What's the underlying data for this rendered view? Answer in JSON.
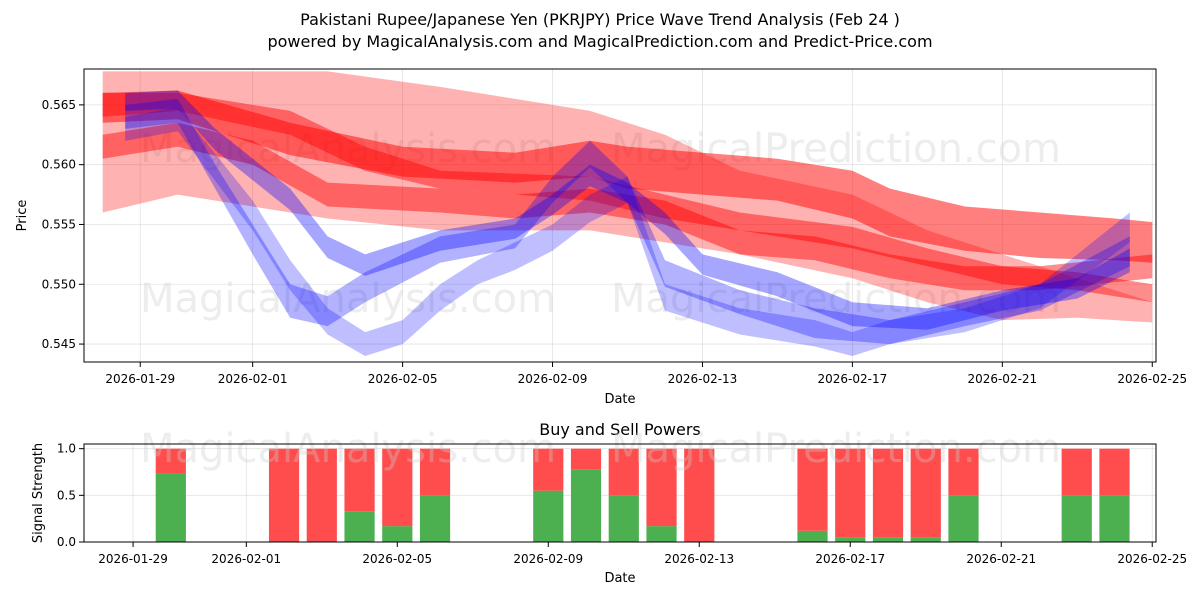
{
  "title_line1": "Pakistani Rupee/Japanese Yen (PKRJPY) Price Wave Trend Analysis (Feb 24 )",
  "title_line2": "powered by MagicalAnalysis.com and MagicalPrediction.com and Predict-Price.com",
  "watermarks": [
    "MagicalAnalysis.com",
    "MagicalPrediction.com"
  ],
  "colors": {
    "red": "#ff0000",
    "blue": "#0000ff",
    "buy": "#4caf50",
    "sell": "#ff4d4d"
  },
  "chart_data": [
    {
      "type": "line",
      "title": "",
      "xlabel": "Date",
      "ylabel": "Price",
      "xlim": [
        -1.5,
        27.1
      ],
      "ylim": [
        0.5435,
        0.568
      ],
      "x_ticks": [
        {
          "pos": 0,
          "label": "2026-01-29"
        },
        {
          "pos": 3,
          "label": "2026-02-01"
        },
        {
          "pos": 7,
          "label": "2026-02-05"
        },
        {
          "pos": 11,
          "label": "2026-02-09"
        },
        {
          "pos": 15,
          "label": "2026-02-13"
        },
        {
          "pos": 19,
          "label": "2026-02-17"
        },
        {
          "pos": 23,
          "label": "2026-02-21"
        },
        {
          "pos": 27,
          "label": "2026-02-25"
        }
      ],
      "y_ticks": [
        0.545,
        0.55,
        0.555,
        0.56,
        0.565
      ],
      "y_tick_labels": [
        "0.545",
        "0.550",
        "0.555",
        "0.560",
        "0.565"
      ],
      "red_bands": [
        {
          "x": [
            -1,
            1,
            3,
            5,
            8,
            12,
            14,
            16,
            19,
            21,
            23,
            25,
            27
          ],
          "upper": [
            0.5678,
            0.5678,
            0.5678,
            0.5678,
            0.5665,
            0.5645,
            0.5625,
            0.5595,
            0.5575,
            0.5545,
            0.5525,
            0.5505,
            0.5485
          ],
          "lower": [
            0.556,
            0.5575,
            0.5565,
            0.5555,
            0.5545,
            0.5545,
            0.5535,
            0.5525,
            0.5505,
            0.5485,
            0.547,
            0.5472,
            0.5468
          ],
          "opacity": 0.3
        },
        {
          "x": [
            -1,
            1,
            4,
            6,
            8,
            12,
            14,
            16,
            19,
            21,
            23,
            25,
            27
          ],
          "upper": [
            0.566,
            0.566,
            0.5645,
            0.5615,
            0.5595,
            0.559,
            0.5575,
            0.556,
            0.5548,
            0.553,
            0.5515,
            0.551,
            0.55
          ],
          "lower": [
            0.564,
            0.5645,
            0.5625,
            0.5595,
            0.558,
            0.557,
            0.5555,
            0.5545,
            0.553,
            0.5515,
            0.55,
            0.5495,
            0.5485
          ],
          "opacity": 0.45
        },
        {
          "x": [
            -1,
            1,
            3,
            5,
            8,
            10,
            12,
            14,
            16,
            18,
            20,
            22,
            24,
            27
          ],
          "upper": [
            0.5625,
            0.5635,
            0.562,
            0.5585,
            0.558,
            0.5575,
            0.558,
            0.557,
            0.5545,
            0.554,
            0.5525,
            0.5515,
            0.5515,
            0.5525
          ],
          "lower": [
            0.5605,
            0.5615,
            0.56,
            0.5565,
            0.556,
            0.5555,
            0.556,
            0.555,
            0.5525,
            0.552,
            0.5505,
            0.5495,
            0.5495,
            0.5505
          ],
          "opacity": 0.45
        },
        {
          "x": [
            -1,
            1,
            4,
            7,
            10,
            12,
            13,
            15,
            17,
            19,
            20,
            22,
            24,
            26,
            27
          ],
          "upper": [
            0.566,
            0.5662,
            0.5635,
            0.5615,
            0.561,
            0.562,
            0.5615,
            0.561,
            0.5605,
            0.5595,
            0.558,
            0.5565,
            0.556,
            0.5555,
            0.5552
          ],
          "lower": [
            0.5635,
            0.5638,
            0.5608,
            0.559,
            0.5585,
            0.559,
            0.558,
            0.5575,
            0.557,
            0.5555,
            0.554,
            0.5528,
            0.5522,
            0.552,
            0.5518
          ],
          "opacity": 0.5
        }
      ],
      "blue_bands": [
        {
          "x": [
            -0.4,
            1,
            2,
            4,
            5,
            6,
            8,
            10,
            11,
            12,
            13,
            14,
            15,
            17,
            19,
            21,
            23,
            25,
            26.4
          ],
          "upper": [
            0.566,
            0.5662,
            0.563,
            0.558,
            0.554,
            0.5525,
            0.5545,
            0.5555,
            0.5575,
            0.56,
            0.5585,
            0.556,
            0.5525,
            0.551,
            0.5485,
            0.548,
            0.5495,
            0.5505,
            0.553
          ],
          "lower": [
            0.5645,
            0.5647,
            0.5612,
            0.5562,
            0.5522,
            0.5507,
            0.5528,
            0.5538,
            0.5558,
            0.5582,
            0.5568,
            0.5542,
            0.5508,
            0.549,
            0.5465,
            0.5462,
            0.5478,
            0.5488,
            0.551
          ],
          "opacity": 0.35
        },
        {
          "x": [
            -0.4,
            1,
            2,
            3,
            4,
            5,
            6,
            8,
            10,
            11,
            12,
            13,
            14,
            16,
            18,
            20,
            22,
            24,
            26.4
          ],
          "upper": [
            0.565,
            0.5655,
            0.56,
            0.555,
            0.55,
            0.549,
            0.551,
            0.554,
            0.555,
            0.559,
            0.562,
            0.559,
            0.552,
            0.5495,
            0.548,
            0.547,
            0.5485,
            0.55,
            0.554
          ],
          "lower": [
            0.563,
            0.5635,
            0.558,
            0.5525,
            0.5472,
            0.5465,
            0.5485,
            0.5518,
            0.553,
            0.5568,
            0.5598,
            0.5568,
            0.5498,
            0.5475,
            0.5455,
            0.545,
            0.5465,
            0.5478,
            0.5515
          ],
          "opacity": 0.3
        },
        {
          "x": [
            -0.4,
            1,
            3,
            4,
            5,
            6,
            7,
            8,
            9,
            10,
            11,
            12,
            13,
            14,
            16,
            18,
            19,
            20,
            22,
            24,
            26.4
          ],
          "upper": [
            0.564,
            0.5648,
            0.557,
            0.552,
            0.548,
            0.546,
            0.547,
            0.55,
            0.552,
            0.5535,
            0.555,
            0.5575,
            0.559,
            0.55,
            0.548,
            0.547,
            0.546,
            0.547,
            0.548,
            0.55,
            0.556
          ],
          "lower": [
            0.562,
            0.5628,
            0.5545,
            0.5495,
            0.5458,
            0.544,
            0.545,
            0.5478,
            0.55,
            0.5512,
            0.5528,
            0.5552,
            0.5568,
            0.5478,
            0.5458,
            0.5448,
            0.544,
            0.545,
            0.546,
            0.548,
            0.5535
          ],
          "opacity": 0.25
        }
      ]
    },
    {
      "type": "bar",
      "title": "Buy and Sell Powers",
      "xlabel": "Date",
      "ylabel": "Signal Strength",
      "xlim": [
        -1.3,
        27.1
      ],
      "ylim": [
        0,
        1.05
      ],
      "x_ticks": [
        {
          "pos": 0,
          "label": "2026-01-29"
        },
        {
          "pos": 3,
          "label": "2026-02-01"
        },
        {
          "pos": 7,
          "label": "2026-02-05"
        },
        {
          "pos": 11,
          "label": "2026-02-09"
        },
        {
          "pos": 15,
          "label": "2026-02-13"
        },
        {
          "pos": 19,
          "label": "2026-02-17"
        },
        {
          "pos": 23,
          "label": "2026-02-21"
        },
        {
          "pos": 27,
          "label": "2026-02-25"
        }
      ],
      "y_ticks": [
        0.0,
        0.5,
        1.0
      ],
      "y_tick_labels": [
        "0.0",
        "0.5",
        "1.0"
      ],
      "categories": [
        "2026-01-30",
        "2026-02-02",
        "2026-02-03",
        "2026-02-04",
        "2026-02-05",
        "2026-02-06",
        "2026-02-09",
        "2026-02-10",
        "2026-02-11",
        "2026-02-12",
        "2026-02-13",
        "2026-02-16",
        "2026-02-17",
        "2026-02-18",
        "2026-02-19",
        "2026-02-20",
        "2026-02-23",
        "2026-02-24"
      ],
      "x_positions": [
        1,
        4,
        5,
        6,
        7,
        8,
        11,
        12,
        13,
        14,
        15,
        18,
        19,
        20,
        21,
        22,
        25,
        26
      ],
      "series": [
        {
          "name": "Buy",
          "values": [
            0.73,
            0.0,
            0.0,
            0.33,
            0.17,
            0.5,
            0.55,
            0.78,
            0.5,
            0.17,
            0.0,
            0.12,
            0.05,
            0.05,
            0.05,
            0.5,
            0.5,
            0.5
          ]
        },
        {
          "name": "Sell",
          "values": [
            0.27,
            1.0,
            1.0,
            0.67,
            0.83,
            0.5,
            0.45,
            0.22,
            0.5,
            0.83,
            1.0,
            0.88,
            0.95,
            0.95,
            0.95,
            0.5,
            0.5,
            0.5
          ]
        }
      ],
      "bar_width": 0.8
    }
  ]
}
